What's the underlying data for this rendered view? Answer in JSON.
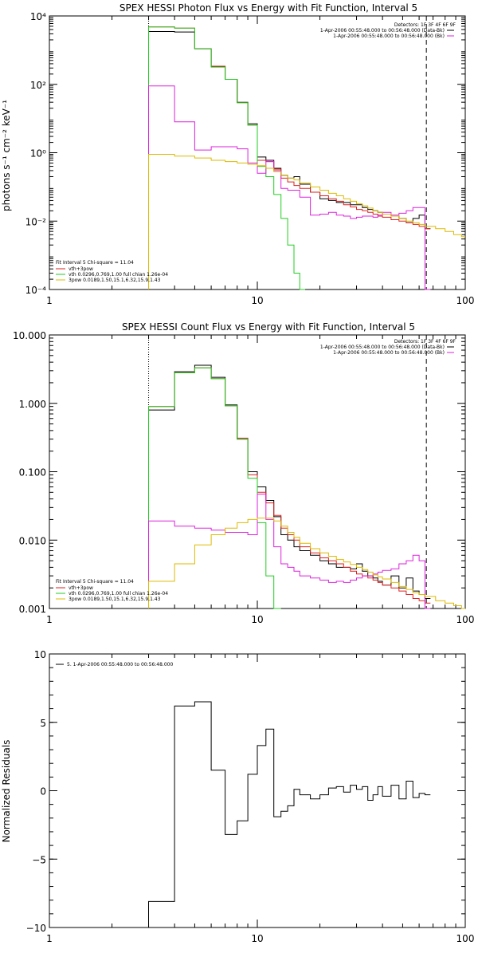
{
  "chart_data": [
    {
      "type": "line",
      "title": "SPEX HESSI Photon Flux vs Energy with Fit Function, Interval 5",
      "xlabel": "",
      "ylabel": "photons s⁻¹ cm⁻² keV⁻¹",
      "xscale": "log",
      "yscale": "log",
      "xlim": [
        1,
        100
      ],
      "ylim": [
        0.0001,
        10000
      ],
      "xticks": [
        "1",
        "10",
        "100"
      ],
      "yticks": [
        "10⁻⁴",
        "10⁻²",
        "10⁰",
        "10²",
        "10⁴"
      ],
      "legend_topright": [
        "Detectors: 1F 3F 4F 6F 9F",
        "1-Apr-2006 00:55:48.000 to 00:56:48.000 (Data-Bk)",
        "1-Apr-2006 00:55:48.000 to 00:56:48.000 (Bk)"
      ],
      "legend_bottomleft": [
        "Fit Interval 5   Chi-square = 11.04",
        "vth+3pow",
        "vth 0.0296,0.769,1.00  full chian 1.26e-04",
        "3pow 0.0189,1.50,15.1,6.32,15.9,1.43"
      ],
      "markers": {
        "dotted_x": 3.0,
        "dashed_x": 65.0
      },
      "series": [
        {
          "color": "#000000",
          "x": [
            3,
            4,
            5,
            6,
            7,
            8,
            9,
            10,
            11,
            12,
            13,
            14,
            15,
            16,
            18,
            20,
            22,
            24,
            26,
            28,
            30,
            32,
            34,
            36,
            38,
            40,
            44,
            48,
            52,
            56,
            60,
            64
          ],
          "values": [
            3500,
            3400,
            1100,
            330,
            140,
            30,
            7,
            0.75,
            0.6,
            0.35,
            0.22,
            0.18,
            0.2,
            0.12,
            0.07,
            0.045,
            0.04,
            0.035,
            0.035,
            0.03,
            0.03,
            0.025,
            0.022,
            0.02,
            0.018,
            0.016,
            0.014,
            0.012,
            0.009,
            0.012,
            0.015,
            0.006
          ]
        },
        {
          "color": "#dd2222",
          "x": [
            3,
            4,
            5,
            6,
            7,
            8,
            9,
            10,
            11,
            12,
            13,
            14,
            15,
            16,
            18,
            20,
            22,
            24,
            26,
            28,
            30,
            32,
            34,
            36,
            38,
            40,
            44,
            48,
            52,
            56,
            60,
            64
          ],
          "values": [
            4800,
            4400,
            1100,
            340,
            140,
            29,
            6.4,
            0.6,
            0.55,
            0.33,
            0.18,
            0.14,
            0.11,
            0.09,
            0.07,
            0.055,
            0.045,
            0.038,
            0.03,
            0.026,
            0.022,
            0.02,
            0.018,
            0.016,
            0.014,
            0.013,
            0.011,
            0.01,
            0.009,
            0.008,
            0.007,
            0.006
          ]
        },
        {
          "color": "#22cc22",
          "x": [
            3,
            4,
            5,
            6,
            7,
            8,
            9,
            10,
            11,
            12,
            13,
            14,
            15,
            16
          ],
          "values": [
            4800,
            4400,
            1100,
            320,
            140,
            29,
            6.4,
            0.4,
            0.2,
            0.06,
            0.012,
            0.002,
            0.0003,
            0.0001
          ]
        },
        {
          "color": "#dd22dd",
          "x": [
            3,
            4,
            5,
            6,
            7,
            8,
            9,
            10,
            11,
            12,
            13,
            14,
            15,
            16,
            18,
            20,
            22,
            24,
            26,
            28,
            30,
            32,
            34,
            36,
            38,
            40,
            44,
            48,
            52,
            56,
            60,
            64
          ],
          "values": [
            90,
            8,
            1.2,
            1.5,
            1.5,
            1.3,
            0.5,
            0.25,
            0.55,
            0.3,
            0.09,
            0.08,
            0.08,
            0.05,
            0.015,
            0.016,
            0.018,
            0.015,
            0.014,
            0.012,
            0.013,
            0.014,
            0.014,
            0.013,
            0.015,
            0.018,
            0.015,
            0.017,
            0.02,
            0.025,
            0.025,
            0.0001
          ]
        },
        {
          "color": "#ddbb00",
          "x": [
            3,
            4,
            5,
            6,
            7,
            8,
            9,
            10,
            11,
            12,
            13,
            14,
            15,
            16,
            18,
            20,
            22,
            24,
            26,
            28,
            30,
            32,
            34,
            36,
            38,
            40,
            44,
            48,
            52,
            56,
            60,
            64,
            72,
            80,
            88,
            96
          ],
          "values": [
            0.9,
            0.8,
            0.7,
            0.6,
            0.55,
            0.5,
            0.46,
            0.42,
            0.35,
            0.28,
            0.22,
            0.18,
            0.16,
            0.13,
            0.1,
            0.08,
            0.065,
            0.055,
            0.045,
            0.038,
            0.032,
            0.028,
            0.024,
            0.02,
            0.018,
            0.016,
            0.014,
            0.012,
            0.01,
            0.009,
            0.008,
            0.007,
            0.006,
            0.005,
            0.004,
            0.0035
          ]
        }
      ]
    },
    {
      "type": "line",
      "title": "SPEX HESSI Count Flux vs Energy with Fit Function, Interval 5",
      "xlabel": "",
      "ylabel": "",
      "xscale": "log",
      "yscale": "log",
      "xlim": [
        1,
        100
      ],
      "ylim": [
        0.001,
        10
      ],
      "xticks": [
        "1",
        "10",
        "100"
      ],
      "yticks": [
        "0.001",
        "0.010",
        "0.100",
        "1.000",
        "10.000"
      ],
      "legend_topright": [
        "Detectors: 1F 3F 4F 6F 9F",
        "1-Apr-2006 00:55:48.000 to 00:56:48.000 (Data-Bk)",
        "1-Apr-2006 00:55:48.000 to 00:56:48.000 (Bk)"
      ],
      "legend_bottomleft": [
        "Fit Interval 5   Chi-square = 11.04",
        "vth+3pow",
        "vth 0.0296,0.769,1.00  full chian 1.26e-04",
        "3pow 0.0189,1.50,15.1,6.32,15.9,1.43"
      ],
      "markers": {
        "dotted_x": 3.0,
        "dashed_x": 65.0
      },
      "series": [
        {
          "color": "#000000",
          "x": [
            3,
            4,
            5,
            6,
            7,
            8,
            9,
            10,
            11,
            12,
            13,
            14,
            15,
            16,
            18,
            20,
            22,
            24,
            26,
            28,
            30,
            32,
            34,
            36,
            38,
            40,
            44,
            48,
            52,
            56,
            60,
            64
          ],
          "values": [
            0.8,
            2.9,
            3.6,
            2.4,
            0.95,
            0.3,
            0.1,
            0.06,
            0.038,
            0.022,
            0.012,
            0.01,
            0.008,
            0.007,
            0.006,
            0.005,
            0.0045,
            0.004,
            0.004,
            0.0038,
            0.0045,
            0.0035,
            0.003,
            0.0028,
            0.0025,
            0.0022,
            0.003,
            0.002,
            0.0028,
            0.0018,
            0.0016,
            0.0014
          ]
        },
        {
          "color": "#dd2222",
          "x": [
            3,
            4,
            5,
            6,
            7,
            8,
            9,
            10,
            11,
            12,
            13,
            14,
            15,
            16,
            18,
            20,
            22,
            24,
            26,
            28,
            30,
            32,
            34,
            36,
            38,
            40,
            44,
            48,
            52,
            56,
            60,
            64
          ],
          "values": [
            0.9,
            2.8,
            3.3,
            2.3,
            0.92,
            0.31,
            0.09,
            0.05,
            0.035,
            0.023,
            0.015,
            0.012,
            0.01,
            0.008,
            0.0065,
            0.0055,
            0.005,
            0.0045,
            0.004,
            0.0035,
            0.0032,
            0.003,
            0.0028,
            0.0026,
            0.0024,
            0.0022,
            0.002,
            0.0018,
            0.0016,
            0.0014,
            0.0013,
            0.0012
          ]
        },
        {
          "color": "#22cc22",
          "x": [
            3,
            4,
            5,
            6,
            7,
            8,
            9,
            10,
            11,
            12
          ],
          "values": [
            0.9,
            2.8,
            3.3,
            2.3,
            0.92,
            0.3,
            0.08,
            0.018,
            0.003,
            0.0008
          ]
        },
        {
          "color": "#dd22dd",
          "x": [
            3,
            4,
            5,
            6,
            7,
            8,
            9,
            10,
            11,
            12,
            13,
            14,
            15,
            16,
            18,
            20,
            22,
            24,
            26,
            28,
            30,
            32,
            34,
            36,
            38,
            40,
            44,
            48,
            52,
            56,
            60,
            64
          ],
          "values": [
            0.019,
            0.016,
            0.015,
            0.014,
            0.013,
            0.013,
            0.012,
            0.047,
            0.02,
            0.008,
            0.0045,
            0.004,
            0.0035,
            0.003,
            0.0028,
            0.0026,
            0.0024,
            0.0025,
            0.0024,
            0.0026,
            0.0028,
            0.003,
            0.003,
            0.0032,
            0.0034,
            0.0036,
            0.0038,
            0.0045,
            0.005,
            0.006,
            0.005,
            0.0004
          ]
        },
        {
          "color": "#ddbb00",
          "x": [
            3,
            4,
            5,
            6,
            7,
            8,
            9,
            10,
            11,
            12,
            13,
            14,
            15,
            16,
            18,
            20,
            22,
            24,
            26,
            28,
            30,
            32,
            34,
            36,
            38,
            40,
            44,
            48,
            52,
            56,
            60,
            64,
            72,
            80,
            88,
            96
          ],
          "values": [
            0.0025,
            0.0045,
            0.0085,
            0.012,
            0.015,
            0.018,
            0.02,
            0.021,
            0.021,
            0.019,
            0.016,
            0.013,
            0.011,
            0.009,
            0.0075,
            0.0065,
            0.0058,
            0.0052,
            0.0048,
            0.0044,
            0.004,
            0.0037,
            0.0034,
            0.0031,
            0.0029,
            0.0027,
            0.0024,
            0.0021,
            0.0019,
            0.0017,
            0.0016,
            0.0015,
            0.0013,
            0.0012,
            0.0011,
            0.001
          ]
        }
      ]
    },
    {
      "type": "line",
      "title": "",
      "xlabel": "",
      "ylabel": "Normalized Residuals",
      "xscale": "log",
      "yscale": "linear",
      "xlim": [
        1,
        100
      ],
      "ylim": [
        -10,
        10
      ],
      "xticks": [
        "1",
        "10",
        "100"
      ],
      "yticks": [
        "−10",
        "−5",
        "0",
        "5",
        "10"
      ],
      "legend_topleft": [
        "5.  1-Apr-2006 00:55:48.000 to 00:56:48.000"
      ],
      "series": [
        {
          "color": "#000000",
          "x": [
            3,
            4,
            5,
            6,
            7,
            8,
            9,
            10,
            11,
            12,
            13,
            14,
            15,
            16,
            18,
            20,
            22,
            24,
            26,
            28,
            30,
            32,
            34,
            36,
            38,
            40,
            44,
            48,
            52,
            56,
            60,
            64
          ],
          "values": [
            -8.1,
            6.2,
            6.5,
            1.5,
            -3.2,
            -2.2,
            1.2,
            3.3,
            4.5,
            -1.9,
            -1.5,
            -1.1,
            0.1,
            -0.3,
            -0.6,
            -0.3,
            0.2,
            0.3,
            -0.1,
            0.4,
            0.1,
            0.3,
            -0.7,
            -0.3,
            0.3,
            -0.4,
            0.4,
            -0.6,
            0.7,
            -0.5,
            -0.2,
            -0.3
          ]
        }
      ]
    }
  ]
}
